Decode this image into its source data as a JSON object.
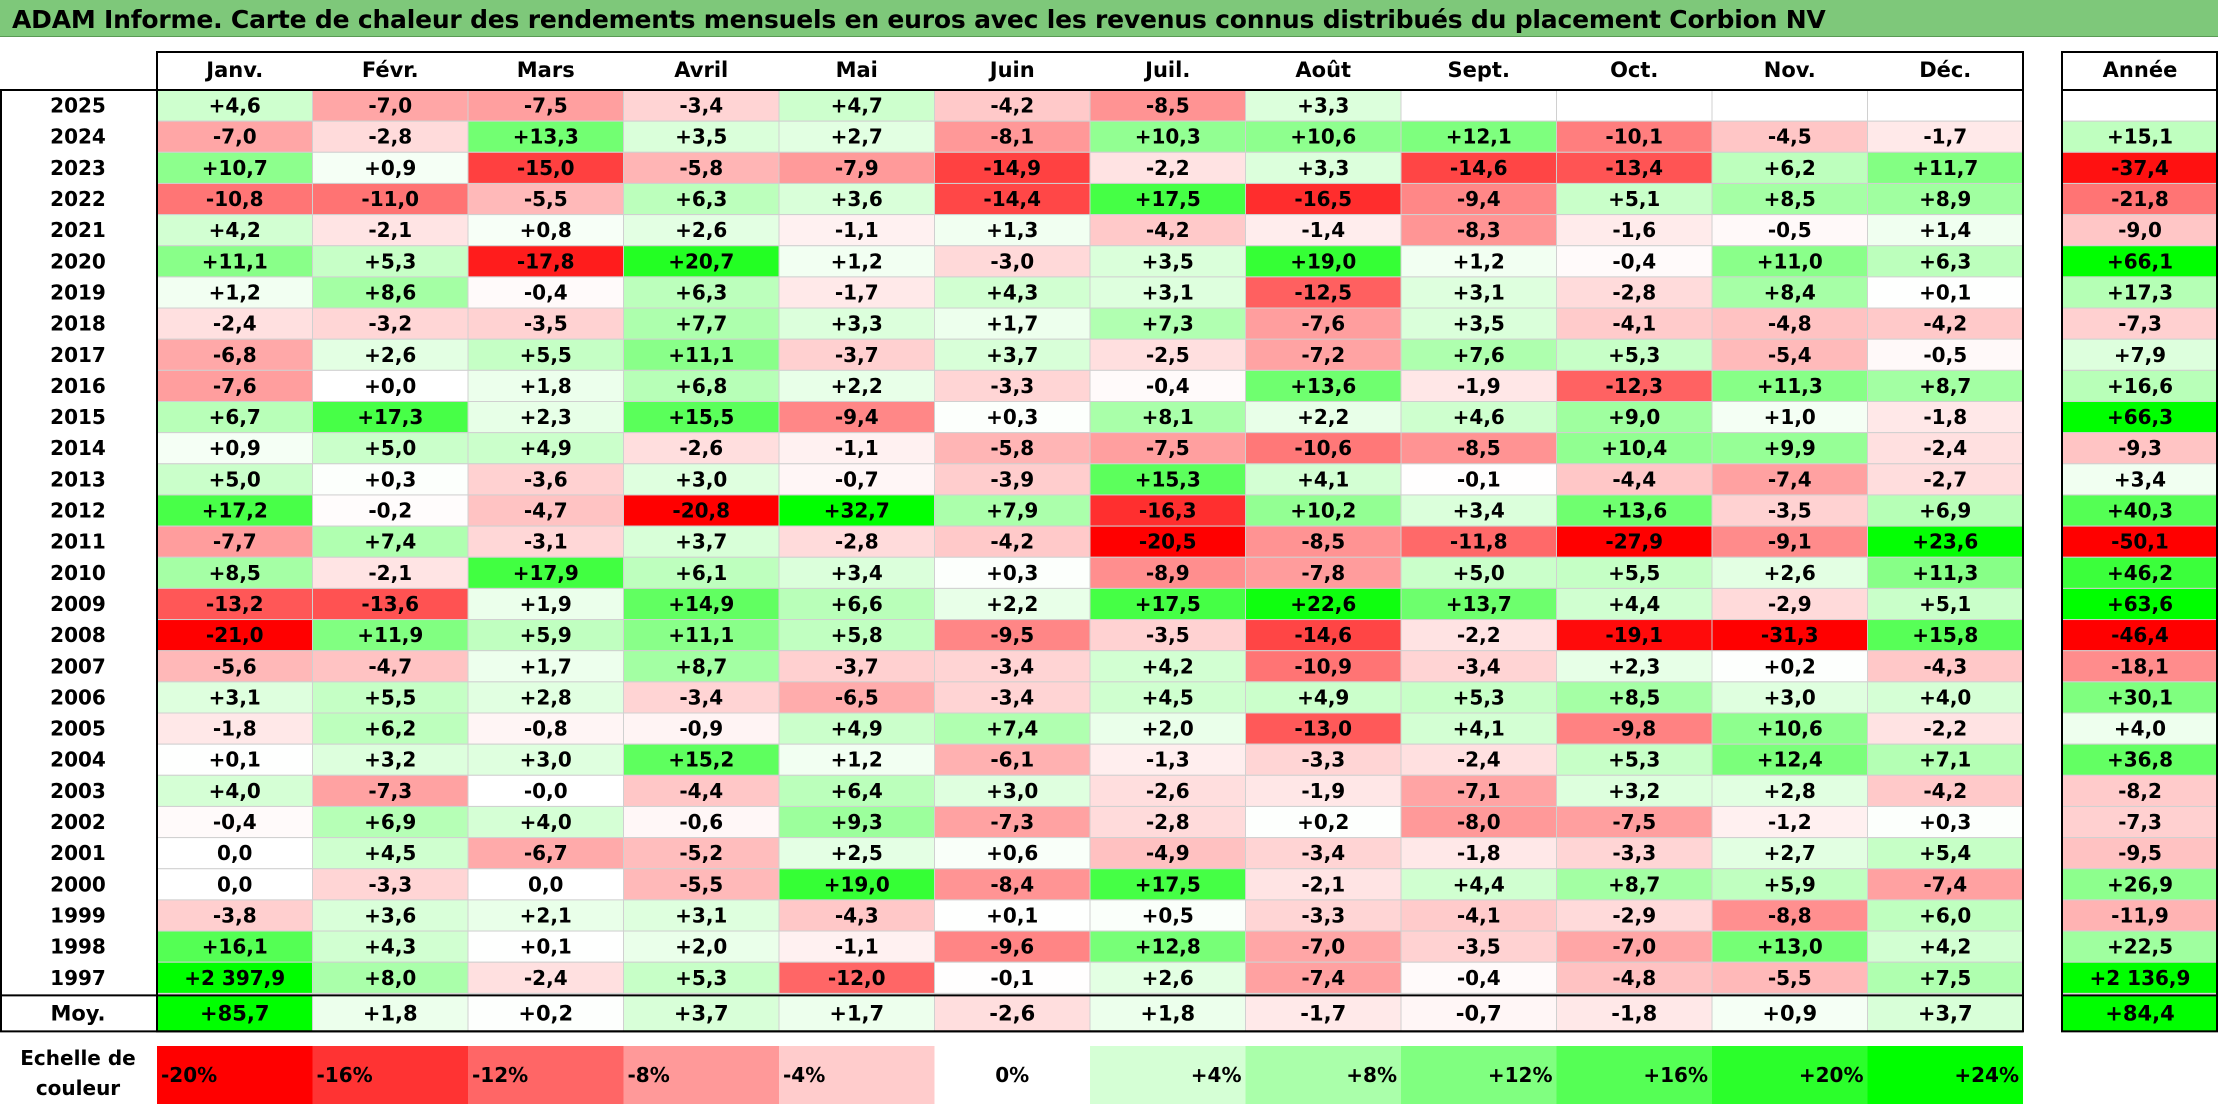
{
  "title": "ADAM Informe. Carte de chaleur des rendements mensuels en euros avec les revenus connus distribués du placement Corbion NV",
  "chart_data": {
    "type": "heatmap",
    "months": [
      "Janv.",
      "Févr.",
      "Mars",
      "Avril",
      "Mai",
      "Juin",
      "Juil.",
      "Août",
      "Sept.",
      "Oct.",
      "Nov.",
      "Déc."
    ],
    "year_header": "Année",
    "avg_label": "Moy.",
    "scale_label": "Echelle de couleur",
    "rows": [
      {
        "year": "2025",
        "m": [
          "+4,6",
          "-7,0",
          "-7,5",
          "-3,4",
          "+4,7",
          "-4,2",
          "-8,5",
          "+3,3",
          "",
          "",
          "",
          ""
        ],
        "annual": ""
      },
      {
        "year": "2024",
        "m": [
          "-7,0",
          "-2,8",
          "+13,3",
          "+3,5",
          "+2,7",
          "-8,1",
          "+10,3",
          "+10,6",
          "+12,1",
          "-10,1",
          "-4,5",
          "-1,7"
        ],
        "annual": "+15,1"
      },
      {
        "year": "2023",
        "m": [
          "+10,7",
          "+0,9",
          "-15,0",
          "-5,8",
          "-7,9",
          "-14,9",
          "-2,2",
          "+3,3",
          "-14,6",
          "-13,4",
          "+6,2",
          "+11,7"
        ],
        "annual": "-37,4"
      },
      {
        "year": "2022",
        "m": [
          "-10,8",
          "-11,0",
          "-5,5",
          "+6,3",
          "+3,6",
          "-14,4",
          "+17,5",
          "-16,5",
          "-9,4",
          "+5,1",
          "+8,5",
          "+8,9"
        ],
        "annual": "-21,8"
      },
      {
        "year": "2021",
        "m": [
          "+4,2",
          "-2,1",
          "+0,8",
          "+2,6",
          "-1,1",
          "+1,3",
          "-4,2",
          "-1,4",
          "-8,3",
          "-1,6",
          "-0,5",
          "+1,4"
        ],
        "annual": "-9,0"
      },
      {
        "year": "2020",
        "m": [
          "+11,1",
          "+5,3",
          "-17,8",
          "+20,7",
          "+1,2",
          "-3,0",
          "+3,5",
          "+19,0",
          "+1,2",
          "-0,4",
          "+11,0",
          "+6,3"
        ],
        "annual": "+66,1"
      },
      {
        "year": "2019",
        "m": [
          "+1,2",
          "+8,6",
          "-0,4",
          "+6,3",
          "-1,7",
          "+4,3",
          "+3,1",
          "-12,5",
          "+3,1",
          "-2,8",
          "+8,4",
          "+0,1"
        ],
        "annual": "+17,3"
      },
      {
        "year": "2018",
        "m": [
          "-2,4",
          "-3,2",
          "-3,5",
          "+7,7",
          "+3,3",
          "+1,7",
          "+7,3",
          "-7,6",
          "+3,5",
          "-4,1",
          "-4,8",
          "-4,2"
        ],
        "annual": "-7,3"
      },
      {
        "year": "2017",
        "m": [
          "-6,8",
          "+2,6",
          "+5,5",
          "+11,1",
          "-3,7",
          "+3,7",
          "-2,5",
          "-7,2",
          "+7,6",
          "+5,3",
          "-5,4",
          "-0,5"
        ],
        "annual": "+7,9"
      },
      {
        "year": "2016",
        "m": [
          "-7,6",
          "+0,0",
          "+1,8",
          "+6,8",
          "+2,2",
          "-3,3",
          "-0,4",
          "+13,6",
          "-1,9",
          "-12,3",
          "+11,3",
          "+8,7"
        ],
        "annual": "+16,6"
      },
      {
        "year": "2015",
        "m": [
          "+6,7",
          "+17,3",
          "+2,3",
          "+15,5",
          "-9,4",
          "+0,3",
          "+8,1",
          "+2,2",
          "+4,6",
          "+9,0",
          "+1,0",
          "-1,8"
        ],
        "annual": "+66,3"
      },
      {
        "year": "2014",
        "m": [
          "+0,9",
          "+5,0",
          "+4,9",
          "-2,6",
          "-1,1",
          "-5,8",
          "-7,5",
          "-10,6",
          "-8,5",
          "+10,4",
          "+9,9",
          "-2,4"
        ],
        "annual": "-9,3"
      },
      {
        "year": "2013",
        "m": [
          "+5,0",
          "+0,3",
          "-3,6",
          "+3,0",
          "-0,7",
          "-3,9",
          "+15,3",
          "+4,1",
          "-0,1",
          "-4,4",
          "-7,4",
          "-2,7"
        ],
        "annual": "+3,4"
      },
      {
        "year": "2012",
        "m": [
          "+17,2",
          "-0,2",
          "-4,7",
          "-20,8",
          "+32,7",
          "+7,9",
          "-16,3",
          "+10,2",
          "+3,4",
          "+13,6",
          "-3,5",
          "+6,9"
        ],
        "annual": "+40,3"
      },
      {
        "year": "2011",
        "m": [
          "-7,7",
          "+7,4",
          "-3,1",
          "+3,7",
          "-2,8",
          "-4,2",
          "-20,5",
          "-8,5",
          "-11,8",
          "-27,9",
          "-9,1",
          "+23,6"
        ],
        "annual": "-50,1"
      },
      {
        "year": "2010",
        "m": [
          "+8,5",
          "-2,1",
          "+17,9",
          "+6,1",
          "+3,4",
          "+0,3",
          "-8,9",
          "-7,8",
          "+5,0",
          "+5,5",
          "+2,6",
          "+11,3"
        ],
        "annual": "+46,2"
      },
      {
        "year": "2009",
        "m": [
          "-13,2",
          "-13,6",
          "+1,9",
          "+14,9",
          "+6,6",
          "+2,2",
          "+17,5",
          "+22,6",
          "+13,7",
          "+4,4",
          "-2,9",
          "+5,1"
        ],
        "annual": "+63,6"
      },
      {
        "year": "2008",
        "m": [
          "-21,0",
          "+11,9",
          "+5,9",
          "+11,1",
          "+5,8",
          "-9,5",
          "-3,5",
          "-14,6",
          "-2,2",
          "-19,1",
          "-31,3",
          "+15,8"
        ],
        "annual": "-46,4"
      },
      {
        "year": "2007",
        "m": [
          "-5,6",
          "-4,7",
          "+1,7",
          "+8,7",
          "-3,7",
          "-3,4",
          "+4,2",
          "-10,9",
          "-3,4",
          "+2,3",
          "+0,2",
          "-4,3"
        ],
        "annual": "-18,1"
      },
      {
        "year": "2006",
        "m": [
          "+3,1",
          "+5,5",
          "+2,8",
          "-3,4",
          "-6,5",
          "-3,4",
          "+4,5",
          "+4,9",
          "+5,3",
          "+8,5",
          "+3,0",
          "+4,0"
        ],
        "annual": "+30,1"
      },
      {
        "year": "2005",
        "m": [
          "-1,8",
          "+6,2",
          "-0,8",
          "-0,9",
          "+4,9",
          "+7,4",
          "+2,0",
          "-13,0",
          "+4,1",
          "-9,8",
          "+10,6",
          "-2,2"
        ],
        "annual": "+4,0"
      },
      {
        "year": "2004",
        "m": [
          "+0,1",
          "+3,2",
          "+3,0",
          "+15,2",
          "+1,2",
          "-6,1",
          "-1,3",
          "-3,3",
          "-2,4",
          "+5,3",
          "+12,4",
          "+7,1"
        ],
        "annual": "+36,8"
      },
      {
        "year": "2003",
        "m": [
          "+4,0",
          "-7,3",
          "-0,0",
          "-4,4",
          "+6,4",
          "+3,0",
          "-2,6",
          "-1,9",
          "-7,1",
          "+3,2",
          "+2,8",
          "-4,2"
        ],
        "annual": "-8,2"
      },
      {
        "year": "2002",
        "m": [
          "-0,4",
          "+6,9",
          "+4,0",
          "-0,6",
          "+9,3",
          "-7,3",
          "-2,8",
          "+0,2",
          "-8,0",
          "-7,5",
          "-1,2",
          "+0,3"
        ],
        "annual": "-7,3"
      },
      {
        "year": "2001",
        "m": [
          "0,0",
          "+4,5",
          "-6,7",
          "-5,2",
          "+2,5",
          "+0,6",
          "-4,9",
          "-3,4",
          "-1,8",
          "-3,3",
          "+2,7",
          "+5,4"
        ],
        "annual": "-9,5"
      },
      {
        "year": "2000",
        "m": [
          "0,0",
          "-3,3",
          "0,0",
          "-5,5",
          "+19,0",
          "-8,4",
          "+17,5",
          "-2,1",
          "+4,4",
          "+8,7",
          "+5,9",
          "-7,4"
        ],
        "annual": "+26,9"
      },
      {
        "year": "1999",
        "m": [
          "-3,8",
          "+3,6",
          "+2,1",
          "+3,1",
          "-4,3",
          "+0,1",
          "+0,5",
          "-3,3",
          "-4,1",
          "-2,9",
          "-8,8",
          "+6,0"
        ],
        "annual": "-11,9"
      },
      {
        "year": "1998",
        "m": [
          "+16,1",
          "+4,3",
          "+0,1",
          "+2,0",
          "-1,1",
          "-9,6",
          "+12,8",
          "-7,0",
          "-3,5",
          "-7,0",
          "+13,0",
          "+4,2"
        ],
        "annual": "+22,5"
      },
      {
        "year": "1997",
        "m": [
          "+2 397,9",
          "+8,0",
          "-2,4",
          "+5,3",
          "-12,0",
          "-0,1",
          "+2,6",
          "-7,4",
          "-0,4",
          "-4,8",
          "-5,5",
          "+7,5"
        ],
        "annual": "+2 136,9"
      }
    ],
    "averages": {
      "m": [
        "+85,7",
        "+1,8",
        "+0,2",
        "+3,7",
        "+1,7",
        "-2,6",
        "+1,8",
        "-1,7",
        "-0,7",
        "-1,8",
        "+0,9",
        "+3,7"
      ],
      "annual": "+84,4"
    },
    "scale": [
      {
        "label": "-20%",
        "value": -20
      },
      {
        "label": "-16%",
        "value": -16
      },
      {
        "label": "-12%",
        "value": -12
      },
      {
        "label": "-8%",
        "value": -8
      },
      {
        "label": "-4%",
        "value": -4
      },
      {
        "label": "0%",
        "value": 0
      },
      {
        "label": "+4%",
        "value": 4
      },
      {
        "label": "+8%",
        "value": 8
      },
      {
        "label": "+12%",
        "value": 12
      },
      {
        "label": "+16%",
        "value": 16
      },
      {
        "label": "+20%",
        "value": 20
      },
      {
        "label": "+24%",
        "value": 24
      }
    ],
    "colors": {
      "neg_max": "#ff0000",
      "zero": "#ffffff",
      "pos_max": "#00ff00",
      "title_bg": "#7ec87a"
    }
  }
}
